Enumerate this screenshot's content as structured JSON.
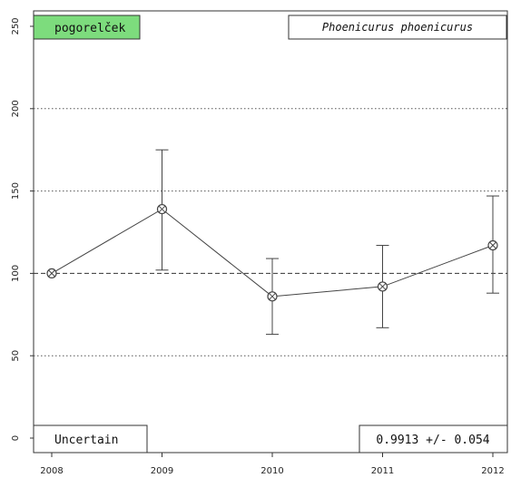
{
  "chart_data": {
    "type": "line",
    "x": [
      "2008",
      "2009",
      "2010",
      "2011",
      "2012"
    ],
    "series": [
      {
        "values": [
          100,
          139,
          86,
          92,
          117
        ],
        "lower": [
          100,
          102,
          63,
          67,
          88
        ],
        "upper": [
          100,
          175,
          109,
          117,
          147
        ]
      }
    ],
    "y_ticks": [
      "0",
      "50",
      "100",
      "150",
      "200",
      "250"
    ],
    "ylim": [
      0,
      250
    ],
    "grid": "horizontal dotted at 50, 150, 200; dashed at 100",
    "color": "#444444",
    "labels": {
      "location": "pogorelček",
      "location_bg": "#7ddc7d",
      "species": "Phoenicurus phoenicurus",
      "trend_class": "Uncertain",
      "trend_value": "0.9913 +/- 0.054"
    }
  }
}
